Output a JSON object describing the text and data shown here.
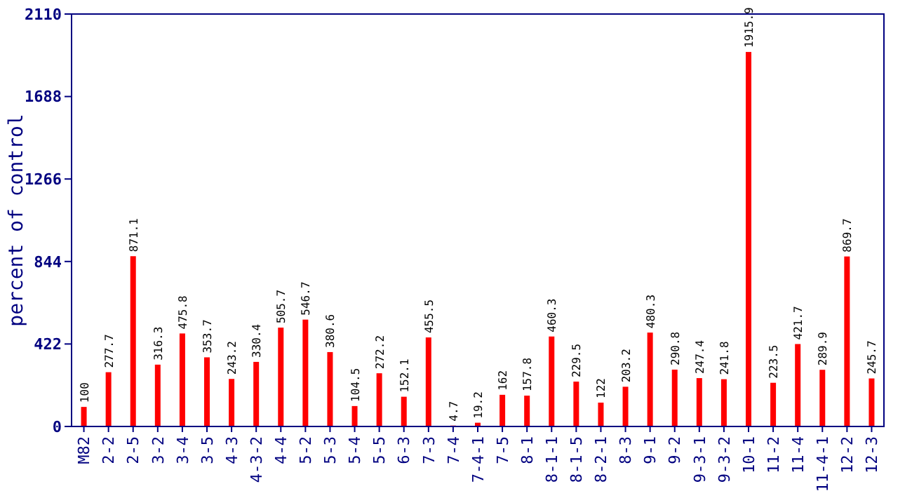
{
  "chart_data": {
    "type": "bar",
    "ylabel": "percent of control",
    "categories": [
      "M82",
      "2-2",
      "2-5",
      "3-2",
      "3-4",
      "3-5",
      "4-3",
      "4-3-2",
      "4-4",
      "5-2",
      "5-3",
      "5-4",
      "5-5",
      "6-3",
      "7-3",
      "7-4",
      "7-4-1",
      "7-5",
      "8-1",
      "8-1-1",
      "8-1-5",
      "8-2-1",
      "8-3",
      "9-1",
      "9-2",
      "9-3-1",
      "9-3-2",
      "10-1",
      "11-2",
      "11-4",
      "11-4-1",
      "12-2",
      "12-3"
    ],
    "values": [
      100,
      277.7,
      871.1,
      316.3,
      475.8,
      353.7,
      243.2,
      330.4,
      505.7,
      546.7,
      380.6,
      104.5,
      272.2,
      152.1,
      455.5,
      4.7,
      19.2,
      162,
      157.8,
      460.3,
      229.5,
      122,
      203.2,
      480.3,
      290.8,
      247.4,
      241.8,
      1915.9,
      223.5,
      421.7,
      289.9,
      869.7,
      245.7
    ],
    "color": "#ff0000",
    "ylim": [
      0,
      2110
    ],
    "yticks": [
      0,
      422,
      844,
      1266,
      1688,
      2110
    ],
    "data_labels": true
  }
}
